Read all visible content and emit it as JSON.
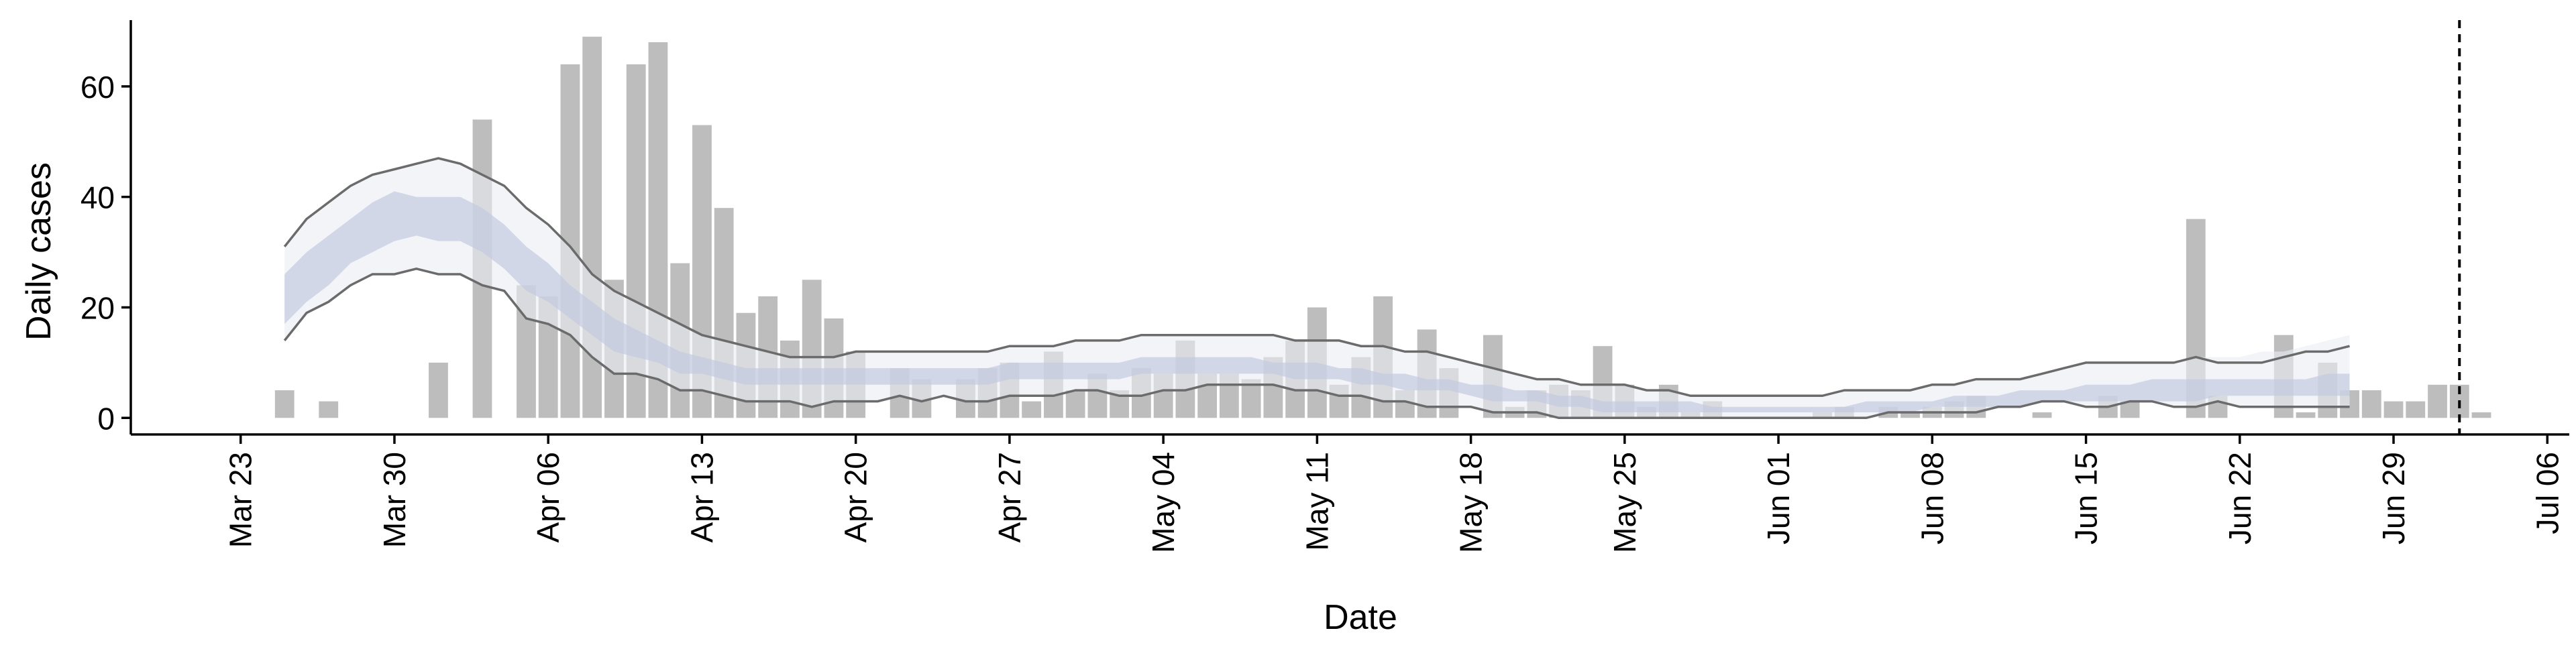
{
  "chart_data": {
    "type": "bar",
    "xlabel": "Date",
    "ylabel": "Daily cases",
    "ylim": [
      -3,
      72
    ],
    "xlim": [
      "2020-03-18",
      "2020-07-07"
    ],
    "y_ticks": [
      0,
      20,
      40,
      60
    ],
    "x_ticks": [
      "2020-03-23",
      "2020-03-30",
      "2020-04-06",
      "2020-04-13",
      "2020-04-20",
      "2020-04-27",
      "2020-05-04",
      "2020-05-11",
      "2020-05-18",
      "2020-05-25",
      "2020-06-01",
      "2020-06-08",
      "2020-06-15",
      "2020-06-22",
      "2020-06-29",
      "2020-07-06"
    ],
    "x_tick_labels": [
      "Mar 23",
      "Mar 30",
      "Apr 06",
      "Apr 13",
      "Apr 20",
      "Apr 27",
      "May 04",
      "May 11",
      "May 18",
      "May 25",
      "Jun 01",
      "Jun 08",
      "Jun 15",
      "Jun 22",
      "Jun 29",
      "Jul 06"
    ],
    "grid": false,
    "legend": "none",
    "colors": {
      "bars": "#bdbdbd",
      "inner_band": "#c4cbdf",
      "outer_band": "#eaecf3",
      "lines": "#6b6b6b",
      "axis": "#000000"
    },
    "cases": {
      "start_date": "2020-03-25",
      "values": [
        5,
        0,
        3,
        0,
        0,
        0,
        0,
        10,
        0,
        54,
        0,
        24,
        22,
        64,
        69,
        25,
        64,
        68,
        28,
        53,
        38,
        19,
        22,
        14,
        25,
        18,
        12,
        0,
        9,
        7,
        0,
        7,
        9,
        10,
        3,
        12,
        5,
        8,
        5,
        9,
        8,
        14,
        8,
        8,
        7,
        11,
        14,
        20,
        6,
        11,
        22,
        5,
        16,
        9,
        0,
        15,
        2,
        5,
        6,
        5,
        13,
        6,
        2,
        6,
        1,
        3,
        0,
        0,
        0,
        0,
        1,
        2,
        0,
        2,
        1,
        2,
        3,
        4,
        0,
        0,
        1,
        0,
        0,
        4,
        3,
        0,
        0,
        36,
        4,
        0,
        0,
        15,
        1,
        10,
        5,
        5,
        3,
        3,
        6,
        6,
        1
      ]
    },
    "series": [
      {
        "name": "upper_line",
        "start_date": "2020-03-25",
        "values": [
          31,
          36,
          39,
          42,
          44,
          45,
          46,
          47,
          46,
          44,
          42,
          38,
          35,
          31,
          26,
          23,
          21,
          19,
          17,
          15,
          14,
          13,
          12,
          11,
          11,
          11,
          12,
          12,
          12,
          12,
          12,
          12,
          12,
          13,
          13,
          13,
          14,
          14,
          14,
          15,
          15,
          15,
          15,
          15,
          15,
          15,
          14,
          14,
          14,
          13,
          13,
          12,
          12,
          11,
          10,
          9,
          8,
          7,
          7,
          6,
          6,
          6,
          5,
          5,
          4,
          4,
          4,
          4,
          4,
          4,
          4,
          5,
          5,
          5,
          5,
          6,
          6,
          7,
          7,
          7,
          8,
          9,
          10,
          10,
          10,
          10,
          10,
          11,
          10,
          10,
          10,
          11,
          12,
          12,
          13
        ]
      },
      {
        "name": "lower_line",
        "start_date": "2020-03-25",
        "values": [
          14,
          19,
          21,
          24,
          26,
          26,
          27,
          26,
          26,
          24,
          23,
          18,
          17,
          15,
          11,
          8,
          8,
          7,
          5,
          5,
          4,
          3,
          3,
          3,
          2,
          3,
          3,
          3,
          4,
          3,
          4,
          3,
          3,
          4,
          4,
          4,
          5,
          5,
          4,
          4,
          5,
          5,
          6,
          6,
          6,
          6,
          5,
          5,
          4,
          4,
          3,
          3,
          2,
          2,
          2,
          1,
          1,
          1,
          0,
          0,
          0,
          0,
          0,
          0,
          0,
          0,
          0,
          0,
          0,
          0,
          0,
          0,
          0,
          1,
          1,
          1,
          1,
          1,
          2,
          2,
          3,
          3,
          2,
          2,
          3,
          3,
          2,
          2,
          3,
          2,
          2,
          2,
          2,
          2,
          2
        ]
      },
      {
        "name": "outer_band_upper",
        "start_date": "2020-03-25",
        "values": [
          31,
          36,
          39,
          42,
          44,
          45,
          46,
          47,
          46,
          44,
          42,
          38,
          35,
          31,
          26,
          23,
          21,
          19,
          17,
          15,
          14,
          13,
          12,
          11,
          11,
          11,
          12,
          12,
          12,
          12,
          12,
          12,
          12,
          13,
          13,
          13,
          14,
          14,
          14,
          15,
          15,
          15,
          15,
          15,
          15,
          15,
          14,
          14,
          14,
          13,
          13,
          12,
          12,
          11,
          10,
          9,
          8,
          7,
          7,
          6,
          6,
          6,
          5,
          5,
          4,
          4,
          4,
          4,
          4,
          4,
          4,
          5,
          5,
          5,
          5,
          6,
          6,
          7,
          7,
          7,
          8,
          9,
          10,
          10,
          10,
          10,
          10,
          11,
          11,
          11,
          12,
          12,
          13,
          14,
          15
        ]
      },
      {
        "name": "outer_band_lower",
        "start_date": "2020-03-25",
        "values": [
          14,
          19,
          21,
          24,
          26,
          26,
          27,
          26,
          26,
          24,
          23,
          18,
          17,
          15,
          11,
          8,
          8,
          7,
          5,
          5,
          4,
          3,
          3,
          3,
          2,
          3,
          3,
          3,
          4,
          3,
          4,
          3,
          3,
          4,
          4,
          4,
          5,
          5,
          4,
          4,
          5,
          5,
          6,
          6,
          6,
          6,
          5,
          5,
          4,
          4,
          3,
          3,
          2,
          2,
          2,
          1,
          1,
          1,
          0,
          0,
          0,
          0,
          0,
          0,
          0,
          0,
          0,
          0,
          0,
          0,
          0,
          0,
          0,
          1,
          1,
          1,
          1,
          1,
          2,
          2,
          3,
          3,
          2,
          2,
          3,
          3,
          2,
          2,
          3,
          2,
          2,
          2,
          2,
          2,
          2
        ]
      },
      {
        "name": "inner_band_upper",
        "start_date": "2020-03-25",
        "values": [
          26,
          30,
          33,
          36,
          39,
          41,
          40,
          40,
          40,
          38,
          35,
          31,
          28,
          24,
          21,
          18,
          16,
          14,
          12,
          11,
          10,
          9,
          9,
          9,
          9,
          9,
          9,
          9,
          9,
          9,
          9,
          9,
          9,
          10,
          10,
          10,
          10,
          10,
          10,
          11,
          11,
          11,
          11,
          11,
          11,
          10,
          10,
          10,
          9,
          9,
          8,
          8,
          7,
          7,
          6,
          6,
          5,
          5,
          4,
          4,
          3,
          3,
          3,
          3,
          3,
          2,
          2,
          2,
          2,
          2,
          2,
          2,
          3,
          3,
          3,
          3,
          4,
          4,
          4,
          5,
          5,
          5,
          6,
          6,
          6,
          7,
          7,
          7,
          7,
          7,
          7,
          7,
          7,
          8,
          8
        ]
      },
      {
        "name": "inner_band_lower",
        "start_date": "2020-03-25",
        "values": [
          17,
          21,
          24,
          28,
          30,
          32,
          33,
          32,
          32,
          30,
          27,
          23,
          21,
          18,
          15,
          12,
          11,
          10,
          8,
          8,
          7,
          6,
          6,
          6,
          6,
          6,
          6,
          6,
          6,
          6,
          6,
          6,
          6,
          7,
          7,
          7,
          7,
          7,
          7,
          8,
          8,
          8,
          8,
          8,
          8,
          8,
          7,
          7,
          7,
          6,
          6,
          5,
          5,
          5,
          4,
          3,
          3,
          3,
          2,
          2,
          1,
          1,
          1,
          1,
          1,
          1,
          1,
          1,
          1,
          1,
          1,
          1,
          1,
          1,
          1,
          2,
          2,
          2,
          2,
          2,
          3,
          3,
          3,
          3,
          3,
          3,
          3,
          3,
          4,
          4,
          4,
          4,
          4,
          4,
          4
        ]
      }
    ],
    "vline": {
      "date": "2020-07-02",
      "style": "dashed"
    }
  }
}
